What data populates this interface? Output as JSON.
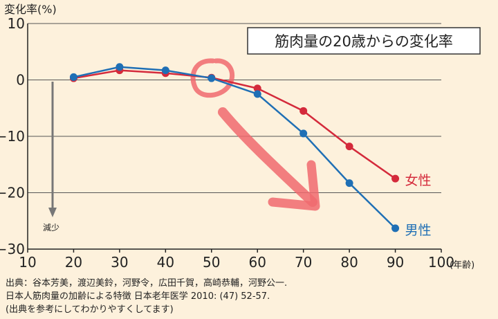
{
  "chart_data": {
    "type": "line",
    "title": "筋肉量の20歳からの変化率",
    "ylabel": "変化率(%)",
    "xunit": "(年齢)",
    "xlim": [
      10,
      100
    ],
    "ylim": [
      -30,
      10
    ],
    "xticks": [
      10,
      20,
      30,
      40,
      50,
      60,
      70,
      80,
      90,
      100
    ],
    "yticks": [
      10,
      0,
      -10,
      -20,
      -30
    ],
    "ytick_labels": [
      "10",
      "0",
      "−10",
      "−20",
      "−30"
    ],
    "grid": "horizontal",
    "arrow_label": "減少",
    "series": [
      {
        "name": "女性",
        "color": "#d42a3b",
        "x": [
          20,
          30,
          40,
          50,
          60,
          70,
          80,
          90
        ],
        "y": [
          0.3,
          1.7,
          1.2,
          0.4,
          -1.5,
          -5.5,
          -11.8,
          -17.5
        ]
      },
      {
        "name": "男性",
        "color": "#1f6fb5",
        "x": [
          20,
          30,
          40,
          50,
          60,
          70,
          80,
          90
        ],
        "y": [
          0.5,
          2.3,
          1.7,
          0.3,
          -2.5,
          -9.5,
          -18.3,
          -26.3
        ]
      }
    ]
  },
  "source": {
    "line1": "出典：谷本芳美，渡辺美鈴，河野令，広田千賀，高崎恭輔，河野公一.",
    "line2": "日本人筋肉量の加齢による特徴 日本老年医学 2010: (47) 52-57.",
    "line3": "(出典を参考にしてわかりやすくしてます)"
  }
}
